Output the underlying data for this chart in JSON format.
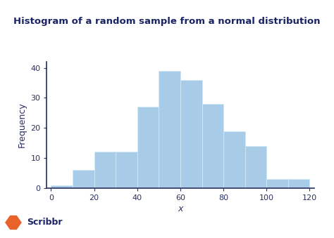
{
  "title": "Histogram of a random sample from a normal distribution",
  "xlabel": "x",
  "ylabel": "Frequency",
  "bar_heights": [
    1,
    6,
    12,
    12,
    27,
    39,
    36,
    28,
    19,
    14,
    3,
    3
  ],
  "bin_edges": [
    0,
    10,
    20,
    30,
    40,
    50,
    60,
    70,
    80,
    90,
    100,
    110,
    120
  ],
  "bar_color": "#a8cce8",
  "bar_edgecolor": "#d0e8f5",
  "ylim": [
    0,
    42
  ],
  "xlim": [
    -2,
    122
  ],
  "yticks": [
    0,
    10,
    20,
    30,
    40
  ],
  "xticks": [
    0,
    20,
    40,
    60,
    80,
    100,
    120
  ],
  "title_color": "#1a2464",
  "axis_color": "#2a3060",
  "tick_color": "#2a3060",
  "label_color": "#2a3060",
  "background_color": "#ffffff",
  "title_fontsize": 9.5,
  "label_fontsize": 9,
  "tick_fontsize": 8,
  "scribbr_text": "Scribbr",
  "scribbr_color": "#1a2464",
  "scribbr_fontsize": 9
}
